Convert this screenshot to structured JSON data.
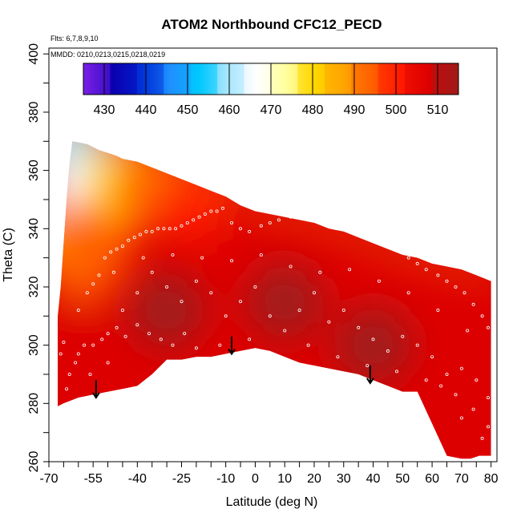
{
  "colors": {
    "background": "#ffffff",
    "axis": "#000000",
    "sample_point": "#ffffff",
    "arrow": "#000000"
  },
  "header": {
    "title": "ATOM2 Northbound CFC12_PECD",
    "flights_note": "Flts: 6,7,8,9,10",
    "mmdd_note": "MMDD: 0210,0213,0215,0218,0219"
  },
  "colorbar": {
    "ticks": [
      "430",
      "440",
      "450",
      "460",
      "470",
      "480",
      "490",
      "500",
      "510"
    ],
    "tick_values": [
      430,
      440,
      450,
      460,
      470,
      480,
      490,
      500,
      510
    ],
    "range": [
      425,
      515
    ],
    "colors": [
      "#7a1fe6",
      "#0a00b0",
      "#0030d8",
      "#1e90ff",
      "#00c8ff",
      "#a8e6ff",
      "#ffffff",
      "#ffffa0",
      "#ffd700",
      "#ffa500",
      "#ff6000",
      "#ff1a00",
      "#dd0000",
      "#a01a1a"
    ]
  },
  "chart_data": {
    "type": "heatmap",
    "title": "ATOM2 Northbound CFC12_PECD",
    "xlabel": "Latitude (deg N)",
    "ylabel": "Theta (C)",
    "xlim": [
      -70,
      82
    ],
    "ylim": [
      260,
      402
    ],
    "x_ticks": [
      -70,
      -55,
      -40,
      -25,
      -10,
      0,
      10,
      20,
      30,
      40,
      50,
      60,
      70,
      80
    ],
    "x_tick_labels": [
      "-70",
      "-55",
      "-40",
      "-25",
      "-10",
      "0",
      "10",
      "20",
      "30",
      "40",
      "50",
      "60",
      "70",
      "80"
    ],
    "x_minor_ticks": [
      -65,
      -60,
      -50,
      -45,
      -35,
      -30,
      -20,
      -15,
      -5,
      5,
      15,
      25,
      35,
      45,
      55,
      65,
      75
    ],
    "y_ticks": [
      260,
      280,
      300,
      320,
      340,
      360,
      380,
      400
    ],
    "y_tick_labels": [
      "260",
      "280",
      "300",
      "320",
      "340",
      "360",
      "380",
      "400"
    ],
    "y_minor_ticks": [
      270,
      290,
      310,
      330,
      350,
      370,
      390
    ],
    "colorbar_range": [
      425,
      515
    ],
    "field_outline": [
      [
        -62,
        370
      ],
      [
        -57,
        369
      ],
      [
        -53,
        367
      ],
      [
        -50,
        366
      ],
      [
        -47,
        365
      ],
      [
        -45,
        364
      ],
      [
        -40,
        363
      ],
      [
        -35,
        361
      ],
      [
        -30,
        359
      ],
      [
        -25,
        357
      ],
      [
        -20,
        355
      ],
      [
        -15,
        353
      ],
      [
        -10,
        351
      ],
      [
        -5,
        348
      ],
      [
        0,
        346
      ],
      [
        5,
        345
      ],
      [
        10,
        344
      ],
      [
        15,
        343
      ],
      [
        20,
        342
      ],
      [
        25,
        340
      ],
      [
        30,
        339
      ],
      [
        35,
        337
      ],
      [
        40,
        335
      ],
      [
        45,
        333
      ],
      [
        50,
        331
      ],
      [
        55,
        330
      ],
      [
        60,
        328
      ],
      [
        65,
        327
      ],
      [
        70,
        326
      ],
      [
        75,
        324
      ],
      [
        80,
        322
      ],
      [
        80,
        262
      ],
      [
        76,
        262
      ],
      [
        73,
        261
      ],
      [
        70,
        261
      ],
      [
        65,
        262
      ],
      [
        60,
        273
      ],
      [
        55,
        284
      ],
      [
        50,
        284
      ],
      [
        45,
        286
      ],
      [
        40,
        288
      ],
      [
        35,
        290
      ],
      [
        30,
        291
      ],
      [
        25,
        292
      ],
      [
        20,
        293
      ],
      [
        15,
        294
      ],
      [
        10,
        296
      ],
      [
        5,
        298
      ],
      [
        0,
        299
      ],
      [
        -5,
        298
      ],
      [
        -10,
        297
      ],
      [
        -15,
        296
      ],
      [
        -20,
        296
      ],
      [
        -25,
        295
      ],
      [
        -30,
        295
      ],
      [
        -35,
        290
      ],
      [
        -40,
        286
      ],
      [
        -45,
        285
      ],
      [
        -50,
        284
      ],
      [
        -55,
        283
      ],
      [
        -60,
        282
      ],
      [
        -65,
        280
      ],
      [
        -67,
        279
      ],
      [
        -67,
        290
      ],
      [
        -67,
        310
      ],
      [
        -66,
        320
      ],
      [
        -65,
        335
      ],
      [
        -64,
        350
      ],
      [
        -63,
        362
      ]
    ],
    "field_colors": [
      {
        "lat": -62,
        "theta": 368,
        "value": 460
      },
      {
        "lat": -58,
        "theta": 352,
        "value": 468
      },
      {
        "lat": -63,
        "theta": 334,
        "value": 485
      },
      {
        "lat": -58,
        "theta": 328,
        "value": 493
      },
      {
        "lat": -52,
        "theta": 340,
        "value": 490
      },
      {
        "lat": -45,
        "theta": 356,
        "value": 482
      },
      {
        "lat": -35,
        "theta": 354,
        "value": 492
      },
      {
        "lat": -20,
        "theta": 348,
        "value": 500
      },
      {
        "lat": 0,
        "theta": 340,
        "value": 503
      },
      {
        "lat": 20,
        "theta": 336,
        "value": 504
      },
      {
        "lat": 40,
        "theta": 330,
        "value": 505
      },
      {
        "lat": 60,
        "theta": 322,
        "value": 506
      },
      {
        "lat": 77,
        "theta": 315,
        "value": 503
      },
      {
        "lat": 10,
        "theta": 315,
        "value": 510
      },
      {
        "lat": -30,
        "theta": 312,
        "value": 509
      },
      {
        "lat": 40,
        "theta": 300,
        "value": 509
      },
      {
        "lat": -60,
        "theta": 300,
        "value": 505
      }
    ],
    "sample_points": [
      [
        -66,
        278
      ],
      [
        -64,
        285
      ],
      [
        -63,
        290
      ],
      [
        -61,
        294
      ],
      [
        -60,
        297
      ],
      [
        -58,
        300
      ],
      [
        -55,
        300
      ],
      [
        -52,
        302
      ],
      [
        -50,
        304
      ],
      [
        -47,
        306
      ],
      [
        -44,
        303
      ],
      [
        -40,
        307
      ],
      [
        -36,
        304
      ],
      [
        -32,
        302
      ],
      [
        -28,
        300
      ],
      [
        -24,
        304
      ],
      [
        -20,
        299
      ],
      [
        -60,
        312
      ],
      [
        -57,
        318
      ],
      [
        -55,
        321
      ],
      [
        -53,
        324
      ],
      [
        -51,
        330
      ],
      [
        -49,
        332
      ],
      [
        -47,
        333
      ],
      [
        -45,
        334
      ],
      [
        -43,
        336
      ],
      [
        -41,
        337
      ],
      [
        -39,
        338
      ],
      [
        -37,
        339
      ],
      [
        -35,
        339
      ],
      [
        -33,
        340
      ],
      [
        -31,
        340
      ],
      [
        -29,
        340
      ],
      [
        -27,
        340
      ],
      [
        -25,
        341
      ],
      [
        -23,
        342
      ],
      [
        -21,
        343
      ],
      [
        -19,
        344
      ],
      [
        -17,
        345
      ],
      [
        -15,
        346
      ],
      [
        -13,
        346
      ],
      [
        -11,
        347
      ],
      [
        -8,
        342
      ],
      [
        -5,
        340
      ],
      [
        -2,
        339
      ],
      [
        2,
        341
      ],
      [
        5,
        342
      ],
      [
        8,
        343
      ],
      [
        12,
        344
      ],
      [
        15,
        345
      ],
      [
        18,
        344
      ],
      [
        22,
        346
      ],
      [
        25,
        346
      ],
      [
        28,
        345
      ],
      [
        32,
        343
      ],
      [
        35,
        340
      ],
      [
        38,
        338
      ],
      [
        42,
        336
      ],
      [
        45,
        334
      ],
      [
        48,
        333
      ],
      [
        52,
        330
      ],
      [
        55,
        328
      ],
      [
        58,
        326
      ],
      [
        62,
        324
      ],
      [
        65,
        322
      ],
      [
        68,
        320
      ],
      [
        71,
        318
      ],
      [
        74,
        314
      ],
      [
        77,
        310
      ],
      [
        79,
        306
      ],
      [
        -56,
        290
      ],
      [
        -50,
        294
      ],
      [
        -45,
        312
      ],
      [
        -40,
        318
      ],
      [
        -35,
        325
      ],
      [
        -30,
        320
      ],
      [
        -25,
        315
      ],
      [
        -20,
        322
      ],
      [
        -15,
        318
      ],
      [
        -10,
        310
      ],
      [
        -5,
        315
      ],
      [
        0,
        320
      ],
      [
        5,
        310
      ],
      [
        10,
        305
      ],
      [
        15,
        312
      ],
      [
        20,
        318
      ],
      [
        25,
        308
      ],
      [
        30,
        312
      ],
      [
        35,
        306
      ],
      [
        40,
        302
      ],
      [
        45,
        298
      ],
      [
        50,
        303
      ],
      [
        55,
        300
      ],
      [
        60,
        296
      ],
      [
        65,
        290
      ],
      [
        70,
        292
      ],
      [
        75,
        288
      ],
      [
        79,
        282
      ],
      [
        79,
        272
      ],
      [
        77,
        268
      ],
      [
        -48,
        325
      ],
      [
        -38,
        330
      ],
      [
        -28,
        331
      ],
      [
        -18,
        330
      ],
      [
        -8,
        329
      ],
      [
        2,
        331
      ],
      [
        12,
        327
      ],
      [
        22,
        325
      ],
      [
        32,
        326
      ],
      [
        42,
        322
      ],
      [
        52,
        318
      ],
      [
        62,
        312
      ],
      [
        72,
        305
      ],
      [
        -12,
        300
      ],
      [
        -2,
        302
      ],
      [
        18,
        300
      ],
      [
        28,
        296
      ],
      [
        38,
        293
      ],
      [
        48,
        291
      ],
      [
        58,
        288
      ],
      [
        68,
        283
      ],
      [
        74,
        278
      ],
      [
        70,
        275
      ],
      [
        63,
        286
      ],
      [
        -66,
        297
      ],
      [
        -65,
        301
      ]
    ],
    "arrows": [
      {
        "lat": -54,
        "theta_top": 288,
        "theta_tip": 282
      },
      {
        "lat": -8,
        "theta_top": 303,
        "theta_tip": 297
      },
      {
        "lat": 39,
        "theta_top": 293,
        "theta_tip": 287
      }
    ]
  }
}
